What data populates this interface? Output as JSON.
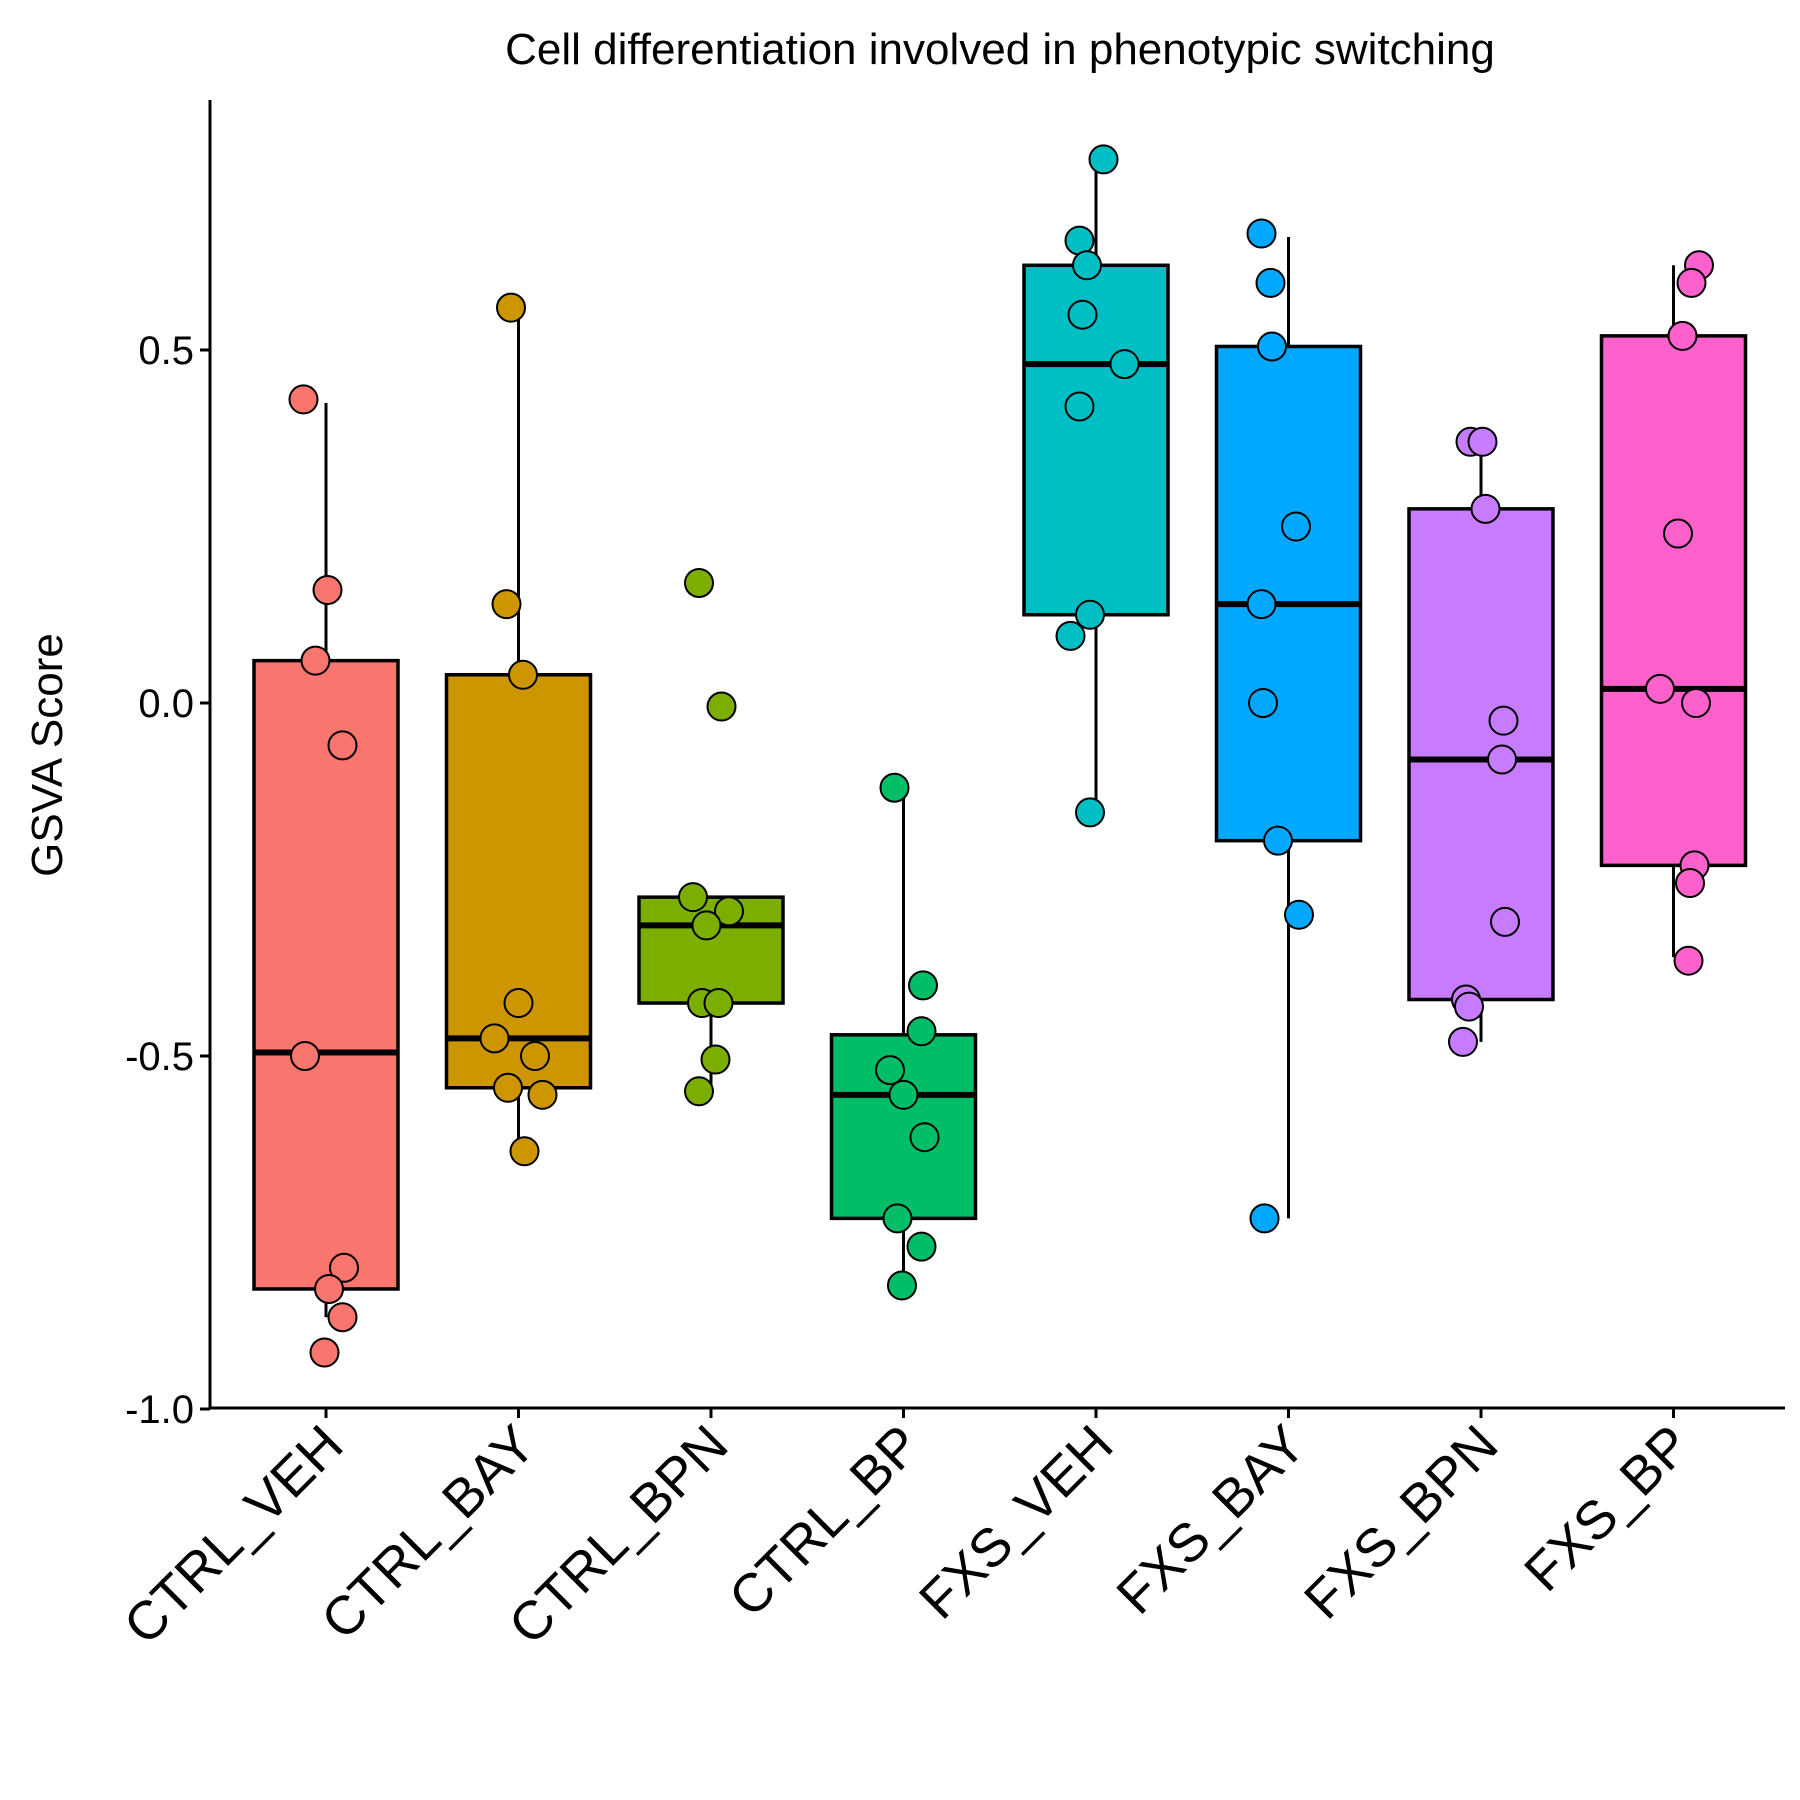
{
  "chart_data": {
    "type": "box",
    "title": "Cell differentiation involved in phenotypic switching",
    "xlabel": "",
    "ylabel": "GSVA Score",
    "ylim": [
      -1.0,
      0.88
    ],
    "yticks": [
      -1.0,
      -0.5,
      0.0,
      0.5
    ],
    "ytick_labels": [
      "-1.0",
      "-0.5",
      "0.0",
      "0.5"
    ],
    "grid": false,
    "legend": "none",
    "categories": [
      "CTRL_VEH",
      "CTRL_BAY",
      "CTRL_BPN",
      "CTRL_BP",
      "FXS_VEH",
      "FXS_BAY",
      "FXS_BPN",
      "FXS_BP"
    ],
    "groups": [
      {
        "name": "CTRL_VEH",
        "color": "#F8766D",
        "box": {
          "whisker_low": -0.87,
          "q1": -0.83,
          "median": -0.495,
          "q3": 0.06,
          "whisker_high": 0.425
        },
        "points": [
          {
            "x": -0.15,
            "y": 0.43
          },
          {
            "x": 0.01,
            "y": 0.16
          },
          {
            "x": -0.07,
            "y": 0.06
          },
          {
            "x": 0.11,
            "y": -0.06
          },
          {
            "x": -0.14,
            "y": -0.5
          },
          {
            "x": 0.12,
            "y": -0.8
          },
          {
            "x": 0.02,
            "y": -0.83
          },
          {
            "x": 0.11,
            "y": -0.87
          },
          {
            "x": -0.01,
            "y": -0.92
          }
        ]
      },
      {
        "name": "CTRL_BAY",
        "color": "#CD9600",
        "box": {
          "whisker_low": -0.63,
          "q1": -0.545,
          "median": -0.475,
          "q3": 0.04,
          "whisker_high": 0.56
        },
        "points": [
          {
            "x": -0.05,
            "y": 0.56
          },
          {
            "x": -0.08,
            "y": 0.14
          },
          {
            "x": 0.03,
            "y": 0.04
          },
          {
            "x": 0.0,
            "y": -0.425
          },
          {
            "x": -0.16,
            "y": -0.475
          },
          {
            "x": 0.11,
            "y": -0.5
          },
          {
            "x": -0.07,
            "y": -0.545
          },
          {
            "x": 0.16,
            "y": -0.555
          },
          {
            "x": 0.04,
            "y": -0.635
          }
        ]
      },
      {
        "name": "CTRL_BPN",
        "color": "#7CAE00",
        "box": {
          "whisker_low": -0.54,
          "q1": -0.425,
          "median": -0.315,
          "q3": -0.275,
          "whisker_high": -0.275
        },
        "points": [
          {
            "x": -0.08,
            "y": 0.17
          },
          {
            "x": 0.07,
            "y": -0.005
          },
          {
            "x": -0.12,
            "y": -0.275
          },
          {
            "x": 0.12,
            "y": -0.295
          },
          {
            "x": -0.03,
            "y": -0.315
          },
          {
            "x": -0.06,
            "y": -0.425
          },
          {
            "x": 0.05,
            "y": -0.425
          },
          {
            "x": 0.03,
            "y": -0.505
          },
          {
            "x": -0.08,
            "y": -0.55
          }
        ]
      },
      {
        "name": "CTRL_BP",
        "color": "#00BE67",
        "box": {
          "whisker_low": -0.825,
          "q1": -0.73,
          "median": -0.555,
          "q3": -0.47,
          "whisker_high": -0.12
        },
        "points": [
          {
            "x": -0.06,
            "y": -0.12
          },
          {
            "x": 0.13,
            "y": -0.4
          },
          {
            "x": 0.12,
            "y": -0.465
          },
          {
            "x": -0.09,
            "y": -0.52
          },
          {
            "x": 0.0,
            "y": -0.555
          },
          {
            "x": 0.14,
            "y": -0.615
          },
          {
            "x": -0.04,
            "y": -0.73
          },
          {
            "x": 0.12,
            "y": -0.77
          },
          {
            "x": -0.01,
            "y": -0.825
          }
        ]
      },
      {
        "name": "FXS_VEH",
        "color": "#00BFC4",
        "box": {
          "whisker_low": -0.15,
          "q1": 0.125,
          "median": 0.48,
          "q3": 0.62,
          "whisker_high": 0.77
        },
        "points": [
          {
            "x": 0.05,
            "y": 0.77
          },
          {
            "x": -0.11,
            "y": 0.655
          },
          {
            "x": -0.06,
            "y": 0.62
          },
          {
            "x": -0.09,
            "y": 0.55
          },
          {
            "x": 0.19,
            "y": 0.48
          },
          {
            "x": -0.11,
            "y": 0.42
          },
          {
            "x": -0.04,
            "y": 0.125
          },
          {
            "x": -0.17,
            "y": 0.095
          },
          {
            "x": -0.04,
            "y": -0.155
          }
        ]
      },
      {
        "name": "FXS_BAY",
        "color": "#00A9FF",
        "box": {
          "whisker_low": -0.73,
          "q1": -0.195,
          "median": 0.14,
          "q3": 0.505,
          "whisker_high": 0.66
        },
        "points": [
          {
            "x": -0.18,
            "y": 0.665
          },
          {
            "x": -0.12,
            "y": 0.595
          },
          {
            "x": -0.11,
            "y": 0.505
          },
          {
            "x": 0.05,
            "y": 0.25
          },
          {
            "x": -0.18,
            "y": 0.14
          },
          {
            "x": -0.17,
            "y": 0.0
          },
          {
            "x": -0.07,
            "y": -0.195
          },
          {
            "x": 0.07,
            "y": -0.3
          },
          {
            "x": -0.16,
            "y": -0.73
          }
        ]
      },
      {
        "name": "FXS_BPN",
        "color": "#C77CFF",
        "box": {
          "whisker_low": -0.48,
          "q1": -0.42,
          "median": -0.08,
          "q3": 0.275,
          "whisker_high": 0.375
        },
        "points": [
          {
            "x": -0.07,
            "y": 0.37
          },
          {
            "x": 0.01,
            "y": 0.37
          },
          {
            "x": 0.03,
            "y": 0.275
          },
          {
            "x": 0.15,
            "y": -0.025
          },
          {
            "x": 0.14,
            "y": -0.08
          },
          {
            "x": 0.16,
            "y": -0.31
          },
          {
            "x": -0.1,
            "y": -0.42
          },
          {
            "x": -0.08,
            "y": -0.43
          },
          {
            "x": -0.12,
            "y": -0.48
          }
        ]
      },
      {
        "name": "FXS_BP",
        "color": "#FF61CC",
        "box": {
          "whisker_low": -0.36,
          "q1": -0.23,
          "median": 0.02,
          "q3": 0.52,
          "whisker_high": 0.62
        },
        "points": [
          {
            "x": 0.17,
            "y": 0.62
          },
          {
            "x": 0.12,
            "y": 0.595
          },
          {
            "x": 0.06,
            "y": 0.52
          },
          {
            "x": 0.03,
            "y": 0.24
          },
          {
            "x": -0.09,
            "y": 0.02
          },
          {
            "x": 0.15,
            "y": 0.0
          },
          {
            "x": 0.14,
            "y": -0.23
          },
          {
            "x": 0.11,
            "y": -0.255
          },
          {
            "x": 0.1,
            "y": -0.365
          }
        ]
      }
    ]
  }
}
